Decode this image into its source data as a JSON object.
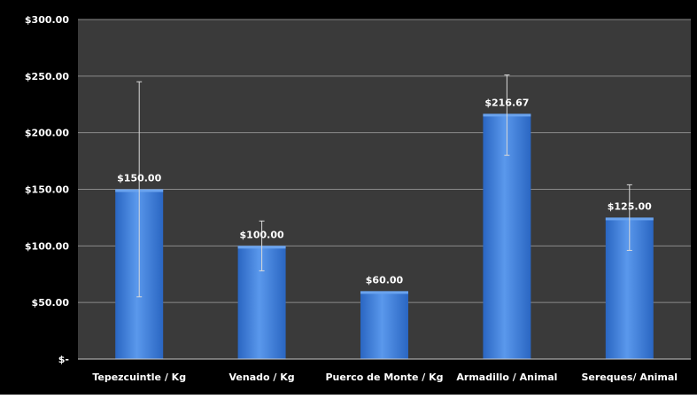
{
  "chart_data": {
    "type": "bar",
    "categories": [
      "Tepezcuintle / Kg",
      "Venado / Kg",
      "Puerco de Monte / Kg",
      "Armadillo / Animal",
      "Sereques/ Animal"
    ],
    "values": [
      150,
      100,
      60,
      216.67,
      125
    ],
    "data_labels": [
      "$150.00",
      "$100.00",
      "$60.00",
      "$216.67",
      "$125.00"
    ],
    "error_bars": [
      {
        "low": 55,
        "high": 245
      },
      {
        "low": 78,
        "high": 122
      },
      null,
      {
        "low": 180,
        "high": 251
      },
      {
        "low": 96,
        "high": 154
      }
    ],
    "y_ticks": [
      0,
      50,
      100,
      150,
      200,
      250,
      300
    ],
    "y_tick_labels": [
      "$-",
      "$50.00",
      "$100.00",
      "$150.00",
      "$200.00",
      "$250.00",
      "$300.00"
    ],
    "ylim": [
      0,
      300
    ],
    "title": "",
    "xlabel": "",
    "ylabel": "",
    "grid": true,
    "colors": {
      "background": "#000000",
      "plot_area": "#3a3a3a",
      "gridline": "#8a8a8a",
      "bar": "#3b7dd8",
      "bar_highlight": "#6aa3ee",
      "text": "#ffffff",
      "error_bar": "#d9d9d9"
    }
  }
}
